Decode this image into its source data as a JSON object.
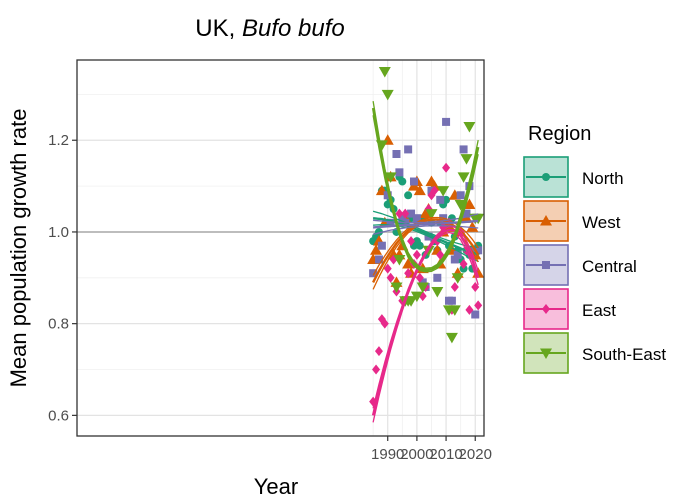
{
  "chart_data": {
    "type": "scatter",
    "title_prefix": "UK, ",
    "title_species": "Bufo bufo",
    "xlabel": "Year",
    "ylabel": "Mean population growth rate",
    "xlim": [
      1883.5,
      2023
    ],
    "ylim": [
      0.555,
      1.375
    ],
    "xticks": [
      1990,
      2000,
      2010,
      2020
    ],
    "yticks": [
      0.6,
      0.8,
      1.0,
      1.2
    ],
    "reference_line_y": 1.0,
    "grid": true,
    "legend_title": "Region",
    "legend_position": "right",
    "series": [
      {
        "name": "North",
        "color": "#1b9e77",
        "marker": "circle",
        "x": [
          1985,
          1986,
          1987,
          1988,
          1989,
          1990,
          1991,
          1992,
          1993,
          1994,
          1995,
          1996,
          1997,
          1998,
          1999,
          2000,
          2001,
          2002,
          2003,
          2004,
          2005,
          2006,
          2007,
          2008,
          2009,
          2010,
          2011,
          2012,
          2013,
          2014,
          2015,
          2016,
          2017,
          2018,
          2019,
          2020,
          2021
        ],
        "y": [
          0.98,
          0.99,
          1.0,
          1.09,
          1.09,
          1.06,
          1.07,
          1.05,
          1.0,
          1.12,
          1.11,
          1.02,
          1.08,
          1.03,
          0.97,
          0.98,
          0.97,
          1.03,
          0.95,
          0.99,
          1.02,
          0.98,
          0.96,
          1.02,
          1.06,
          1.07,
          0.97,
          1.03,
          0.99,
          0.96,
          0.94,
          0.92,
          0.96,
          0.95,
          0.92,
          0.96,
          0.97
        ],
        "fit": [
          1.03,
          1.029,
          1.028,
          1.026,
          1.024,
          1.022,
          1.019,
          1.016,
          1.013,
          1.009,
          1.005,
          1.001,
          0.997,
          0.993,
          0.989,
          0.984,
          0.98,
          0.976,
          0.972,
          0.968,
          0.964,
          0.96,
          0.957,
          0.954,
          0.951,
          0.95
        ],
        "fit_x": [
          1985,
          1986.5,
          1988,
          1989.5,
          1991,
          1992.5,
          1994,
          1995.5,
          1997,
          1998.5,
          2000,
          2001.5,
          2003,
          2004.5,
          2006,
          2007.5,
          2009,
          2010.5,
          2012,
          2013.5,
          2015,
          2016.5,
          2018,
          2019.5,
          2021,
          2021
        ]
      },
      {
        "name": "West",
        "color": "#d95f02",
        "marker": "triangle-up",
        "x": [
          1985,
          1986,
          1987,
          1988,
          1989,
          1990,
          1991,
          1992,
          1993,
          1994,
          1995,
          1996,
          1997,
          1998,
          1999,
          2000,
          2001,
          2002,
          2003,
          2004,
          2005,
          2006,
          2007,
          2008,
          2009,
          2010,
          2011,
          2012,
          2013,
          2014,
          2015,
          2016,
          2017,
          2018,
          2019,
          2020,
          2021
        ],
        "y": [
          0.94,
          0.96,
          0.98,
          1.09,
          1.02,
          1.2,
          1.12,
          0.95,
          0.89,
          0.95,
          0.97,
          1.03,
          0.93,
          0.91,
          1.1,
          1.11,
          1.09,
          0.92,
          1.04,
          1.05,
          1.11,
          1.1,
          0.96,
          0.93,
          1.0,
          1.02,
          1.01,
          0.96,
          1.08,
          0.91,
          1.0,
          1.03,
          1.03,
          1.06,
          1.01,
          0.95,
          0.91
        ],
        "fit_x": [
          1985,
          1987,
          1989,
          1991,
          1993,
          1995,
          1997,
          1999,
          2001,
          2003,
          2005,
          2007,
          2009,
          2011,
          2013,
          2015,
          2017,
          2019,
          2021
        ],
        "fit": [
          0.89,
          0.915,
          0.937,
          0.957,
          0.975,
          0.99,
          1.003,
          1.013,
          1.02,
          1.025,
          1.027,
          1.027,
          1.025,
          1.02,
          1.012,
          1.001,
          0.988,
          0.971,
          0.95
        ]
      },
      {
        "name": "Central",
        "color": "#7570b3",
        "marker": "square",
        "x": [
          1985,
          1987,
          1988,
          1990,
          1991,
          1993,
          1994,
          1995,
          1996,
          1997,
          1998,
          1999,
          2000,
          2002,
          2003,
          2004,
          2005,
          2007,
          2008,
          2009,
          2010,
          2011,
          2012,
          2013,
          2014,
          2015,
          2016,
          2017,
          2018,
          2019,
          2020,
          2021
        ],
        "y": [
          0.91,
          0.94,
          0.97,
          1.08,
          1.02,
          1.17,
          1.13,
          1.03,
          1.02,
          1.18,
          1.04,
          1.11,
          1.03,
          0.89,
          0.88,
          0.99,
          1.09,
          0.9,
          1.07,
          1.03,
          1.24,
          0.85,
          0.85,
          0.94,
          0.95,
          1.08,
          1.18,
          1.04,
          1.1,
          0.96,
          0.82,
          0.96
        ],
        "fit_x": [
          1985,
          1991,
          1997,
          2003,
          2009,
          2015,
          2021
        ],
        "fit": [
          1.01,
          1.013,
          1.015,
          1.017,
          1.019,
          1.021,
          1.024
        ]
      },
      {
        "name": "East",
        "color": "#e7298a",
        "marker": "diamond",
        "x": [
          1985,
          1986,
          1987,
          1988,
          1989,
          1990,
          1991,
          1992,
          1993,
          1994,
          1995,
          1996,
          1997,
          1998,
          1999,
          2000,
          2001,
          2002,
          2003,
          2004,
          2005,
          2006,
          2007,
          2008,
          2009,
          2010,
          2011,
          2012,
          2013,
          2014,
          2015,
          2016,
          2017,
          2018,
          2019,
          2020,
          2021
        ],
        "y": [
          0.63,
          0.7,
          0.74,
          0.81,
          0.8,
          0.92,
          0.9,
          0.94,
          0.87,
          1.04,
          0.85,
          1.04,
          0.91,
          0.98,
          0.93,
          0.95,
          0.9,
          0.86,
          0.88,
          1.05,
          1.08,
          1.09,
          0.98,
          0.95,
          1.01,
          1.14,
          1.02,
          0.83,
          0.88,
          0.9,
          1.0,
          0.93,
          0.96,
          0.83,
          0.95,
          0.88,
          0.84
        ],
        "fit_x": [
          1985,
          1987,
          1989,
          1991,
          1993,
          1995,
          1997,
          1999,
          2001,
          2003,
          2005,
          2007,
          2009,
          2011,
          2013,
          2015,
          2017,
          2019,
          2021
        ],
        "fit": [
          0.6,
          0.655,
          0.705,
          0.752,
          0.795,
          0.834,
          0.87,
          0.902,
          0.93,
          0.954,
          0.974,
          0.99,
          1.0,
          1.005,
          1.003,
          0.992,
          0.97,
          0.94,
          0.9
        ]
      },
      {
        "name": "South-East",
        "color": "#66a61e",
        "marker": "triangle-down",
        "x": [
          1988,
          1989,
          1990,
          1991,
          1993,
          1994,
          1996,
          1997,
          1998,
          2000,
          2002,
          2004,
          2005,
          2007,
          2009,
          2011,
          2012,
          2013,
          2014,
          2015,
          2016,
          2017,
          2018,
          2020,
          2021
        ],
        "y": [
          1.19,
          1.35,
          1.3,
          1.12,
          0.88,
          0.94,
          0.85,
          0.85,
          0.85,
          0.86,
          0.88,
          0.96,
          1.04,
          0.87,
          1.09,
          0.83,
          0.77,
          0.83,
          0.9,
          1.06,
          1.12,
          1.16,
          1.23,
          1.03,
          1.03
        ],
        "fit_x": [
          1985,
          1987,
          1989,
          1991,
          1993,
          1995,
          1997,
          1999,
          2001,
          2003,
          2005,
          2007,
          2009,
          2011,
          2013,
          2015,
          2017,
          2019,
          2021
        ],
        "fit": [
          1.27,
          1.195,
          1.128,
          1.07,
          1.02,
          0.98,
          0.95,
          0.93,
          0.92,
          0.917,
          0.918,
          0.925,
          0.94,
          0.96,
          0.99,
          1.03,
          1.075,
          1.125,
          1.185
        ]
      }
    ]
  }
}
